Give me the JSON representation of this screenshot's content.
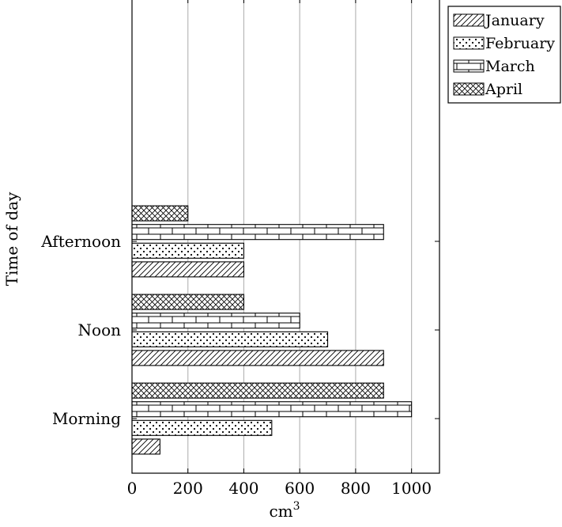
{
  "chart_data": {
    "type": "bar",
    "orientation": "horizontal",
    "categories": [
      "Morning",
      "Noon",
      "Afternoon"
    ],
    "series": [
      {
        "name": "January",
        "values": [
          100,
          900,
          400
        ],
        "pattern": "north-east-lines"
      },
      {
        "name": "February",
        "values": [
          500,
          700,
          400
        ],
        "pattern": "dots"
      },
      {
        "name": "March",
        "values": [
          1000,
          600,
          900
        ],
        "pattern": "bricks"
      },
      {
        "name": "April",
        "values": [
          900,
          400,
          200
        ],
        "pattern": "crosshatch"
      }
    ],
    "xlabel": "cm",
    "xlabel_superscript": "3",
    "ylabel": "Time of day",
    "xlim": [
      0,
      1100
    ],
    "xticks": [
      0,
      200,
      400,
      600,
      800,
      1000
    ],
    "grid": "vertical-major",
    "legend_position": "outer-top-right"
  }
}
